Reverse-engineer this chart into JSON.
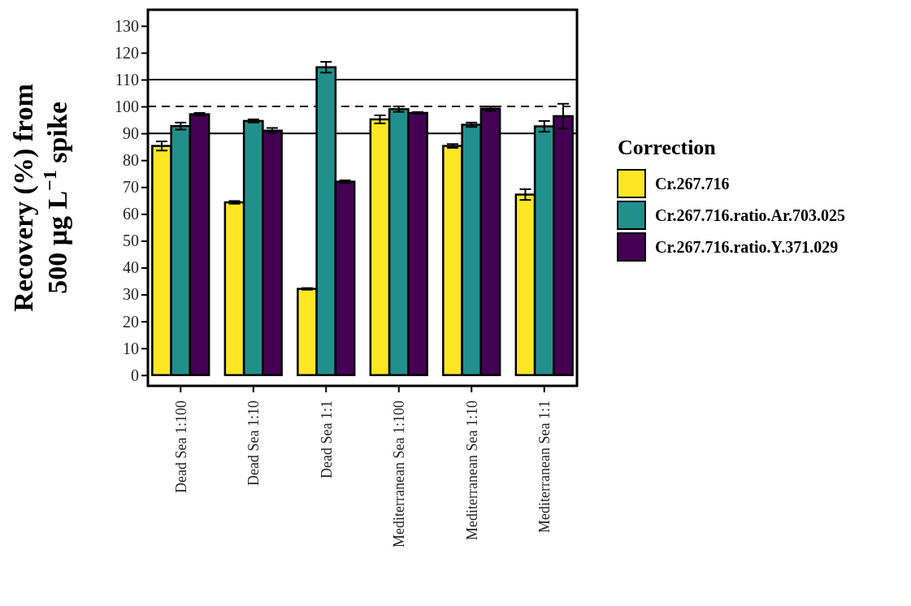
{
  "chart_data": {
    "type": "bar",
    "ylabel": "Recovery (%) from 500 μg L$^{−1}$ spike",
    "legend_title": "Correction",
    "legend": "right",
    "categories": [
      "Dead Sea 1:100",
      "Dead Sea 1:10",
      "Dead Sea 1:1",
      "Mediterranean Sea 1:100",
      "Mediterranean Sea 1:10",
      "Mediterranean Sea 1:1"
    ],
    "series": [
      {
        "name": "Cr.267.716",
        "color": "#fde725",
        "values": [
          85.3,
          64.3,
          32.1,
          95.2,
          85.3,
          67.2
        ],
        "errors": [
          1.7,
          0.5,
          0.3,
          1.5,
          0.7,
          2
        ]
      },
      {
        "name": "Cr.267.716.ratio.Ar.703.025",
        "color": "#21908c",
        "values": [
          92.7,
          94.6,
          114.6,
          99.0,
          93.2,
          92.6
        ],
        "errors": [
          1.3,
          0.6,
          2,
          1,
          0.8,
          2
        ]
      },
      {
        "name": "Cr.267.716.ratio.Y.371.029",
        "color": "#440154",
        "values": [
          97.1,
          91.0,
          72.0,
          97.6,
          99.2,
          96.4
        ],
        "errors": [
          0.5,
          1,
          0.5,
          0.3,
          0.8,
          4.6
        ]
      }
    ],
    "ylim": [
      -4,
      136
    ],
    "yticks": [
      0,
      10,
      20,
      30,
      40,
      50,
      60,
      70,
      80,
      90,
      100,
      110,
      120,
      130
    ],
    "ref_lines": [
      {
        "axis": "y",
        "value": 110,
        "line_style": "solid"
      },
      {
        "axis": "y",
        "value": 100,
        "line_style": "dashed"
      },
      {
        "axis": "y",
        "value": 90,
        "line_style": "solid"
      }
    ]
  }
}
